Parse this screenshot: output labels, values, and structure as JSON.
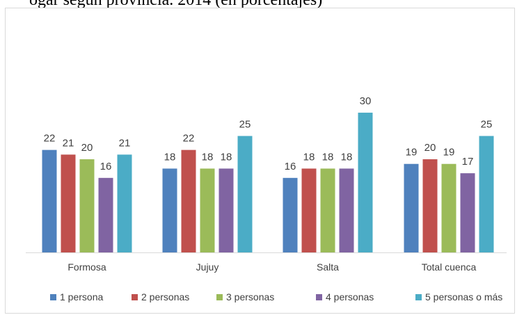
{
  "page": {
    "title_fragment": "ogar según provincia. 2014 (en porcentajes)"
  },
  "chart_data": {
    "type": "bar",
    "title": "",
    "xlabel": "",
    "ylabel": "",
    "categories": [
      "Formosa",
      "Jujuy",
      "Salta",
      "Total cuenca"
    ],
    "series": [
      {
        "name": "1 persona",
        "values": [
          22,
          18,
          16,
          19
        ],
        "color": "#4f81bd"
      },
      {
        "name": "2 personas",
        "values": [
          21,
          22,
          18,
          20
        ],
        "color": "#c0504d"
      },
      {
        "name": "3 personas",
        "values": [
          20,
          18,
          18,
          19
        ],
        "color": "#9bbb59"
      },
      {
        "name": "4 personas",
        "values": [
          16,
          18,
          18,
          17
        ],
        "color": "#8064a2"
      },
      {
        "name": "5 personas o más",
        "values": [
          21,
          25,
          30,
          25
        ],
        "color": "#4bacc6"
      }
    ],
    "ylim": [
      0,
      31.5
    ],
    "grid": false,
    "data_labels": true,
    "legend_position": "bottom",
    "colors": {
      "axis": "#d9d9d9",
      "text": "#404040",
      "border": "#d9d9d9"
    }
  }
}
